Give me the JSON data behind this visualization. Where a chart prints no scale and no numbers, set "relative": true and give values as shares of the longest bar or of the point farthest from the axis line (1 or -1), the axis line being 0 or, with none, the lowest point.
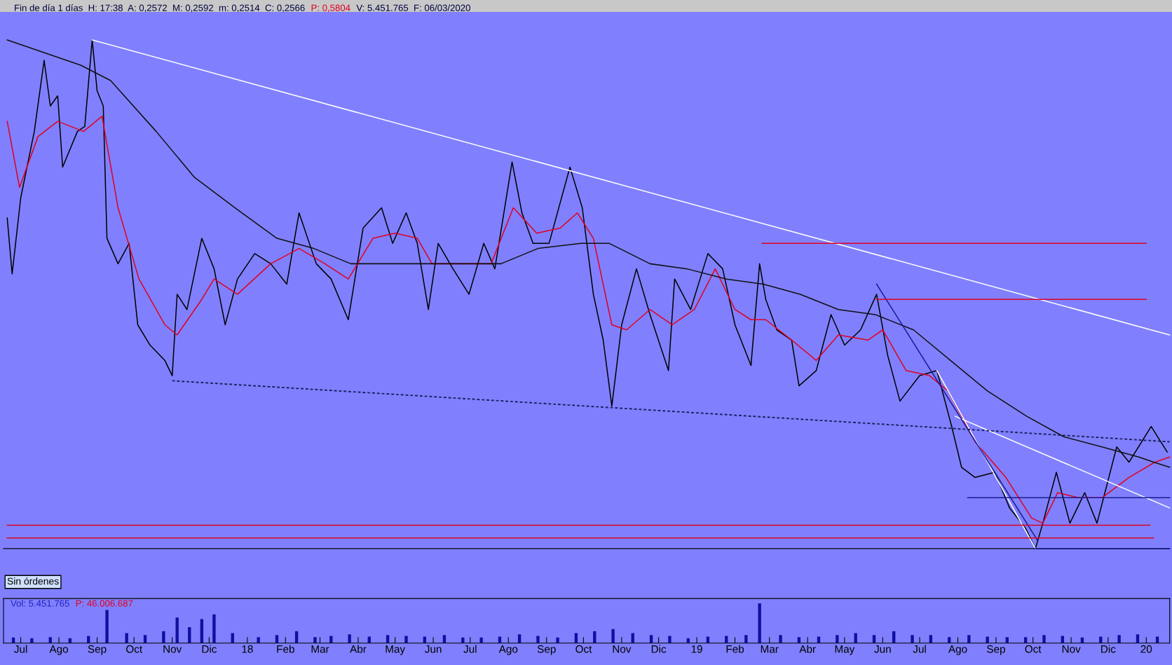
{
  "chart_data": [
    {
      "type": "line",
      "relative": true,
      "tick_labels": false,
      "xlim": [
        "2017-06-17",
        "2020-01-20"
      ],
      "annotations": [
        "Fin de día 1 días  H: 17:38  A: 0,2572  M: 0,2592  m: 0,2514  C: 0,2566",
        "P: 0,5804",
        "V: 5.451.765  F: 06/03/2020",
        "Sin órdenes"
      ],
      "series": [
        {
          "type": "line",
          "color": "#000000",
          "x": [
            "2017-06-20",
            "2017-06-24",
            "2017-07-01",
            "2017-07-12",
            "2017-07-20",
            "2017-07-25",
            "2017-07-31",
            "2017-08-04",
            "2017-08-16",
            "2017-08-22",
            "2017-08-28",
            "2017-09-01",
            "2017-09-06",
            "2017-09-09",
            "2017-09-18",
            "2017-09-27",
            "2017-10-04",
            "2017-10-14",
            "2017-10-26",
            "2017-11-01",
            "2017-11-05",
            "2017-11-13",
            "2017-11-25",
            "2017-12-05",
            "2017-12-14",
            "2017-12-24",
            "2018-01-07",
            "2018-01-20",
            "2018-02-02",
            "2018-02-12",
            "2018-02-26",
            "2018-03-10",
            "2018-03-24",
            "2018-04-05",
            "2018-04-20",
            "2018-04-29",
            "2018-05-10",
            "2018-05-19",
            "2018-05-28",
            "2018-06-05",
            "2018-06-17",
            "2018-06-30",
            "2018-07-12",
            "2018-07-21",
            "2018-08-04",
            "2018-08-12",
            "2018-08-21",
            "2018-09-03",
            "2018-09-20",
            "2018-09-30",
            "2018-10-09",
            "2018-10-17",
            "2018-10-24",
            "2018-11-01",
            "2018-11-13",
            "2018-11-24",
            "2018-12-09",
            "2018-12-14",
            "2018-12-27",
            "2019-01-10",
            "2019-01-22",
            "2019-02-01",
            "2019-02-14",
            "2019-02-21",
            "2019-02-26",
            "2019-03-07",
            "2019-03-19",
            "2019-03-25",
            "2019-04-08",
            "2019-04-20",
            "2019-05-01",
            "2019-05-14",
            "2019-05-27",
            "2019-06-05",
            "2019-06-15",
            "2019-07-01",
            "2019-07-15",
            "2019-07-27",
            "2019-08-04",
            "2019-08-15",
            "2019-08-31",
            "2019-09-12",
            "2019-09-25",
            "2019-10-03",
            "2019-10-09",
            "2019-10-20",
            "2019-10-31",
            "2019-11-12",
            "2019-11-22",
            "2019-12-08",
            "2019-12-18",
            "2020-01-05",
            "2020-01-18"
          ],
          "values": [
            0.65,
            0.54,
            0.69,
            0.82,
            0.96,
            0.87,
            0.89,
            0.75,
            0.82,
            0.83,
            1.0,
            0.9,
            0.87,
            0.61,
            0.56,
            0.6,
            0.44,
            0.4,
            0.37,
            0.34,
            0.5,
            0.47,
            0.61,
            0.55,
            0.44,
            0.53,
            0.58,
            0.56,
            0.52,
            0.66,
            0.56,
            0.53,
            0.45,
            0.63,
            0.67,
            0.6,
            0.66,
            0.6,
            0.47,
            0.6,
            0.55,
            0.5,
            0.6,
            0.55,
            0.76,
            0.66,
            0.6,
            0.6,
            0.75,
            0.67,
            0.5,
            0.41,
            0.28,
            0.44,
            0.55,
            0.46,
            0.35,
            0.53,
            0.47,
            0.58,
            0.55,
            0.44,
            0.36,
            0.56,
            0.49,
            0.43,
            0.41,
            0.32,
            0.35,
            0.46,
            0.4,
            0.43,
            0.5,
            0.38,
            0.29,
            0.34,
            0.35,
            0.24,
            0.16,
            0.14,
            0.15,
            0.08,
            0.04,
            0.0,
            0.05,
            0.15,
            0.05,
            0.11,
            0.05,
            0.2,
            0.17,
            0.24,
            0.19
          ]
        },
        {
          "type": "line",
          "color": "#e00020",
          "x": [
            "2017-06-20",
            "2017-06-30",
            "2017-07-15",
            "2017-07-31",
            "2017-08-21",
            "2017-09-05",
            "2017-09-18",
            "2017-10-05",
            "2017-10-26",
            "2017-11-05",
            "2017-11-25",
            "2017-12-05",
            "2017-12-24",
            "2018-01-20",
            "2018-02-12",
            "2018-03-05",
            "2018-03-24",
            "2018-04-13",
            "2018-05-01",
            "2018-05-19",
            "2018-05-31",
            "2018-06-24",
            "2018-07-18",
            "2018-08-05",
            "2018-08-24",
            "2018-09-12",
            "2018-09-26",
            "2018-10-09",
            "2018-10-24",
            "2018-11-05",
            "2018-11-24",
            "2018-12-12",
            "2018-12-30",
            "2019-01-16",
            "2019-02-01",
            "2019-02-14",
            "2019-02-26",
            "2019-03-19",
            "2019-04-08",
            "2019-04-26",
            "2019-05-20",
            "2019-06-01",
            "2019-06-20",
            "2019-07-09",
            "2019-07-24",
            "2019-08-15",
            "2019-09-09",
            "2019-09-30",
            "2019-10-09",
            "2019-10-21",
            "2019-11-07",
            "2019-11-26",
            "2019-12-18",
            "2020-01-08",
            "2020-01-20"
          ],
          "values": [
            0.84,
            0.71,
            0.81,
            0.84,
            0.82,
            0.85,
            0.67,
            0.53,
            0.44,
            0.42,
            0.49,
            0.53,
            0.5,
            0.56,
            0.59,
            0.56,
            0.53,
            0.61,
            0.62,
            0.61,
            0.56,
            0.56,
            0.56,
            0.67,
            0.62,
            0.63,
            0.66,
            0.61,
            0.44,
            0.43,
            0.47,
            0.44,
            0.47,
            0.55,
            0.47,
            0.45,
            0.45,
            0.41,
            0.37,
            0.42,
            0.41,
            0.43,
            0.35,
            0.34,
            0.31,
            0.21,
            0.14,
            0.06,
            0.05,
            0.11,
            0.1,
            0.1,
            0.14,
            0.17,
            0.18
          ]
        },
        {
          "type": "line",
          "color": "#101010",
          "x": [
            "2017-06-20",
            "2017-08-19",
            "2017-09-12",
            "2017-10-19",
            "2017-11-19",
            "2017-12-22",
            "2018-01-25",
            "2018-02-24",
            "2018-03-26",
            "2018-04-26",
            "2018-05-27",
            "2018-06-26",
            "2018-07-26",
            "2018-08-25",
            "2018-09-29",
            "2018-10-22",
            "2018-11-24",
            "2018-12-24",
            "2019-01-25",
            "2019-02-24",
            "2019-03-26",
            "2019-04-26",
            "2019-05-26",
            "2019-06-26",
            "2019-07-26",
            "2019-08-25",
            "2019-09-26",
            "2019-10-26",
            "2019-11-26",
            "2019-12-26",
            "2020-01-07",
            "2020-01-20"
          ],
          "values": [
            1.0,
            0.95,
            0.92,
            0.82,
            0.73,
            0.67,
            0.61,
            0.59,
            0.56,
            0.56,
            0.56,
            0.56,
            0.56,
            0.59,
            0.6,
            0.6,
            0.56,
            0.55,
            0.53,
            0.52,
            0.5,
            0.47,
            0.46,
            0.43,
            0.37,
            0.31,
            0.26,
            0.22,
            0.2,
            0.18,
            0.17,
            0.16
          ]
        },
        {
          "type": "line",
          "color": "#ffffff",
          "x": [
            "2017-08-28",
            "2020-01-20"
          ],
          "values": [
            1.0,
            0.42
          ]
        },
        {
          "type": "line",
          "color": "#ffffff",
          "x": [
            "2019-07-30",
            "2020-01-20"
          ],
          "values": [
            0.26,
            0.08
          ]
        },
        {
          "type": "line",
          "color": "#ffffff",
          "x": [
            "2019-07-15",
            "2019-10-03"
          ],
          "values": [
            0.35,
            0.0
          ]
        },
        {
          "type": "line",
          "color": "#202060",
          "line_style": "dashed",
          "x": [
            "2017-11-01",
            "2020-01-20"
          ],
          "values": [
            0.33,
            0.21
          ]
        },
        {
          "type": "line",
          "color": "#1a1a90",
          "x": [
            "2019-05-27",
            "2019-10-05"
          ],
          "values": [
            0.52,
            0.015
          ]
        },
        {
          "type": "line",
          "color": "#e00020",
          "x": [
            "2019-02-23",
            "2020-01-01"
          ],
          "values": [
            0.6,
            0.6
          ]
        },
        {
          "type": "line",
          "color": "#e00020",
          "x": [
            "2019-05-27",
            "2020-01-01"
          ],
          "values": [
            0.49,
            0.49
          ]
        },
        {
          "type": "line",
          "color": "#e00020",
          "x": [
            "2017-06-20",
            "2020-01-04"
          ],
          "values": [
            0.046,
            0.046
          ]
        },
        {
          "type": "line",
          "color": "#e00020",
          "x": [
            "2017-06-20",
            "2020-01-07"
          ],
          "values": [
            0.021,
            0.021
          ]
        },
        {
          "type": "line",
          "color": "#1a1a90",
          "x": [
            "2019-08-09",
            "2020-01-20"
          ],
          "values": [
            0.1,
            0.1
          ]
        },
        {
          "type": "line",
          "color": "#1a1a90",
          "x": [
            "2019-10-02",
            "2020-01-20"
          ],
          "values": [
            0.0,
            0.0
          ]
        }
      ]
    },
    {
      "type": "bar",
      "relative": true,
      "tick_labels": "x",
      "xlim": [
        "2017-06-17",
        "2020-01-20"
      ],
      "annotations": [
        "Vol: 5.451.765",
        "P: 46.006.687"
      ],
      "xticks": [
        {
          "value": "2017-07-01",
          "label": "Jul"
        },
        {
          "value": "2017-08-01",
          "label": "Ago"
        },
        {
          "value": "2017-09-01",
          "label": "Sep"
        },
        {
          "value": "2017-10-01",
          "label": "Oct"
        },
        {
          "value": "2017-11-01",
          "label": "Nov"
        },
        {
          "value": "2017-12-01",
          "label": "Dic"
        },
        {
          "value": "2018-01-01",
          "label": "18"
        },
        {
          "value": "2018-02-01",
          "label": "Feb"
        },
        {
          "value": "2018-03-01",
          "label": "Mar"
        },
        {
          "value": "2018-04-01",
          "label": "Abr"
        },
        {
          "value": "2018-05-01",
          "label": "May"
        },
        {
          "value": "2018-06-01",
          "label": "Jun"
        },
        {
          "value": "2018-07-01",
          "label": "Jul"
        },
        {
          "value": "2018-08-01",
          "label": "Ago"
        },
        {
          "value": "2018-09-01",
          "label": "Sep"
        },
        {
          "value": "2018-10-01",
          "label": "Oct"
        },
        {
          "value": "2018-11-01",
          "label": "Nov"
        },
        {
          "value": "2018-12-01",
          "label": "Dic"
        },
        {
          "value": "2019-01-01",
          "label": "19"
        },
        {
          "value": "2019-02-01",
          "label": "Feb"
        },
        {
          "value": "2019-03-01",
          "label": "Mar"
        },
        {
          "value": "2019-04-01",
          "label": "Abr"
        },
        {
          "value": "2019-05-01",
          "label": "May"
        },
        {
          "value": "2019-06-01",
          "label": "Jun"
        },
        {
          "value": "2019-07-01",
          "label": "Jul"
        },
        {
          "value": "2019-08-01",
          "label": "Ago"
        },
        {
          "value": "2019-09-01",
          "label": "Sep"
        },
        {
          "value": "2019-10-01",
          "label": "Oct"
        },
        {
          "value": "2019-11-01",
          "label": "Nov"
        },
        {
          "value": "2019-12-01",
          "label": "Dic"
        },
        {
          "value": "2020-01-01",
          "label": "20"
        }
      ],
      "series": [
        {
          "color": "#1010a0",
          "x": [
            "2017-06-25",
            "2017-07-10",
            "2017-07-25",
            "2017-08-10",
            "2017-08-25",
            "2017-09-09",
            "2017-09-25",
            "2017-10-10",
            "2017-10-25",
            "2017-11-05",
            "2017-11-15",
            "2017-11-25",
            "2017-12-05",
            "2017-12-20",
            "2018-01-10",
            "2018-01-25",
            "2018-02-10",
            "2018-02-25",
            "2018-03-10",
            "2018-03-25",
            "2018-04-10",
            "2018-04-25",
            "2018-05-10",
            "2018-05-25",
            "2018-06-10",
            "2018-06-25",
            "2018-07-10",
            "2018-07-25",
            "2018-08-10",
            "2018-08-25",
            "2018-09-10",
            "2018-09-25",
            "2018-10-10",
            "2018-10-25",
            "2018-11-10",
            "2018-11-25",
            "2018-12-10",
            "2018-12-25",
            "2019-01-10",
            "2019-01-25",
            "2019-02-10",
            "2019-02-21",
            "2019-03-10",
            "2019-03-25",
            "2019-04-10",
            "2019-04-25",
            "2019-05-10",
            "2019-05-25",
            "2019-06-10",
            "2019-06-25",
            "2019-07-10",
            "2019-07-25",
            "2019-08-10",
            "2019-08-25",
            "2019-09-10",
            "2019-09-25",
            "2019-10-10",
            "2019-10-25",
            "2019-11-10",
            "2019-11-25",
            "2019-12-10",
            "2019-12-25",
            "2020-01-10"
          ],
          "values": [
            0.14,
            0.12,
            0.15,
            0.12,
            0.18,
            0.83,
            0.25,
            0.2,
            0.3,
            0.64,
            0.4,
            0.6,
            0.72,
            0.25,
            0.15,
            0.2,
            0.3,
            0.15,
            0.18,
            0.22,
            0.16,
            0.2,
            0.18,
            0.16,
            0.2,
            0.14,
            0.14,
            0.16,
            0.22,
            0.18,
            0.14,
            0.25,
            0.3,
            0.35,
            0.25,
            0.2,
            0.18,
            0.12,
            0.16,
            0.18,
            0.2,
            1.0,
            0.2,
            0.15,
            0.16,
            0.2,
            0.25,
            0.2,
            0.3,
            0.2,
            0.2,
            0.15,
            0.2,
            0.16,
            0.15,
            0.15,
            0.2,
            0.18,
            0.14,
            0.16,
            0.2,
            0.22,
            0.16
          ]
        }
      ]
    }
  ]
}
